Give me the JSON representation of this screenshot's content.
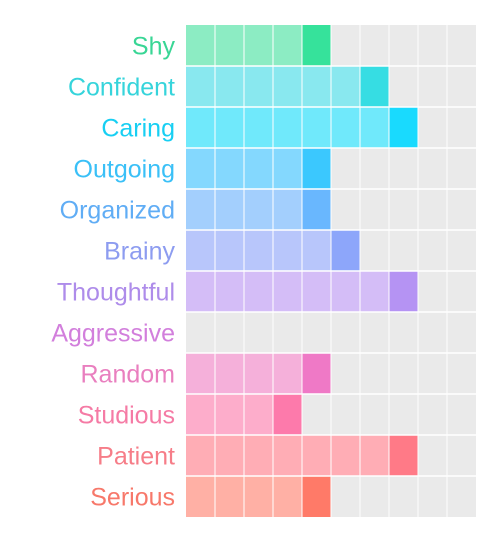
{
  "chart_data": {
    "type": "bar",
    "orientation": "horizontal",
    "title": "",
    "xlabel": "",
    "ylabel": "",
    "xlim": [
      0,
      10
    ],
    "grid": true,
    "categories": [
      "Shy",
      "Confident",
      "Caring",
      "Outgoing",
      "Organized",
      "Brainy",
      "Thoughtful",
      "Aggressive",
      "Random",
      "Studious",
      "Patient",
      "Serious"
    ],
    "values": [
      5,
      7,
      8,
      5,
      5,
      6,
      8,
      0,
      5,
      4,
      8,
      5
    ],
    "colors": {
      "Shy": {
        "light": "#8cecc3",
        "dark": "#36e29b",
        "label": "#39d695"
      },
      "Confident": {
        "light": "#89e8ef",
        "dark": "#36dde3",
        "label": "#36d4db"
      },
      "Caring": {
        "light": "#70e9fb",
        "dark": "#19dafe",
        "label": "#17cff3"
      },
      "Outgoing": {
        "light": "#84d8fe",
        "dark": "#3bc8fe",
        "label": "#3ac0f7"
      },
      "Organized": {
        "light": "#a3cffd",
        "dark": "#69b7fe",
        "label": "#60adf5"
      },
      "Brainy": {
        "light": "#b8c6fb",
        "dark": "#8da6fa",
        "label": "#8d9cf0"
      },
      "Thoughtful": {
        "light": "#d4bdf7",
        "dark": "#b593f3",
        "label": "#ae8cea"
      },
      "Aggressive": {
        "light": "#e6b7ee",
        "dark": "#d98be4",
        "label": "#d27fdc"
      },
      "Random": {
        "light": "#f5b0da",
        "dark": "#ef79c6",
        "label": "#e97fbf"
      },
      "Studious": {
        "light": "#fdadcb",
        "dark": "#fd7aab",
        "label": "#f57ba5"
      },
      "Patient": {
        "light": "#ffadb5",
        "dark": "#ff7a87",
        "label": "#f67d88"
      },
      "Serious": {
        "light": "#ffb0a5",
        "dark": "#ff7a68",
        "label": "#f7786a"
      }
    },
    "background_color": "#eaeaea"
  }
}
